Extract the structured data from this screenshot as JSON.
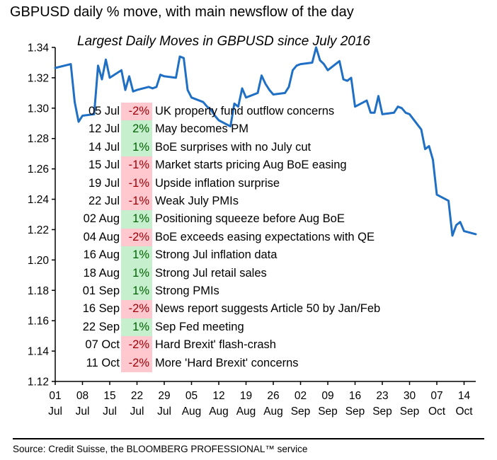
{
  "header": {
    "title": "GBPUSD daily % move, with main newsflow of the day"
  },
  "footer": {
    "source": "Source: Credit Suisse, the BLOOMBERG PROFESSIONAL™ service"
  },
  "chart_data": {
    "type": "line",
    "title": "Largest Daily Moves in GBPUSD since July 2016",
    "xlabel": "",
    "ylabel": "",
    "ylim": [
      1.12,
      1.34
    ],
    "yticks": [
      "1.12",
      "1.14",
      "1.16",
      "1.18",
      "1.20",
      "1.22",
      "1.24",
      "1.26",
      "1.28",
      "1.30",
      "1.32",
      "1.34"
    ],
    "xlim_days_from_01jul": [
      0,
      108
    ],
    "xticks": [
      {
        "day": 0,
        "top": "01",
        "bottom": "Jul"
      },
      {
        "day": 7,
        "top": "08",
        "bottom": "Jul"
      },
      {
        "day": 14,
        "top": "15",
        "bottom": "Jul"
      },
      {
        "day": 21,
        "top": "22",
        "bottom": "Jul"
      },
      {
        "day": 28,
        "top": "29",
        "bottom": "Jul"
      },
      {
        "day": 35,
        "top": "05",
        "bottom": "Aug"
      },
      {
        "day": 42,
        "top": "12",
        "bottom": "Aug"
      },
      {
        "day": 49,
        "top": "19",
        "bottom": "Aug"
      },
      {
        "day": 56,
        "top": "26",
        "bottom": "Aug"
      },
      {
        "day": 63,
        "top": "02",
        "bottom": "Sep"
      },
      {
        "day": 70,
        "top": "09",
        "bottom": "Sep"
      },
      {
        "day": 77,
        "top": "16",
        "bottom": "Sep"
      },
      {
        "day": 84,
        "top": "23",
        "bottom": "Sep"
      },
      {
        "day": 91,
        "top": "30",
        "bottom": "Sep"
      },
      {
        "day": 98,
        "top": "07",
        "bottom": "Oct"
      },
      {
        "day": 105,
        "top": "14",
        "bottom": "Oct"
      }
    ],
    "grid": false,
    "legend": "none",
    "series": [
      {
        "name": "GBPUSD",
        "color": "#1F6FC5",
        "points": [
          [
            0,
            1.3265
          ],
          [
            4,
            1.329
          ],
          [
            5,
            1.304
          ],
          [
            6,
            1.291
          ],
          [
            7,
            1.295
          ],
          [
            10,
            1.296
          ],
          [
            11,
            1.328
          ],
          [
            12,
            1.319
          ],
          [
            13,
            1.332
          ],
          [
            14,
            1.32
          ],
          [
            17,
            1.325
          ],
          [
            18,
            1.312
          ],
          [
            19,
            1.321
          ],
          [
            20,
            1.311
          ],
          [
            21,
            1.312
          ],
          [
            24,
            1.314
          ],
          [
            25,
            1.313
          ],
          [
            26,
            1.314
          ],
          [
            27,
            1.322
          ],
          [
            28,
            1.321
          ],
          [
            31,
            1.32
          ],
          [
            32,
            1.334
          ],
          [
            33,
            1.333
          ],
          [
            34,
            1.312
          ],
          [
            35,
            1.307
          ],
          [
            38,
            1.304
          ],
          [
            39,
            1.301
          ],
          [
            40,
            1.299
          ],
          [
            41,
            1.295
          ],
          [
            42,
            1.292
          ],
          [
            45,
            1.288
          ],
          [
            46,
            1.303
          ],
          [
            47,
            1.301
          ],
          [
            48,
            1.313
          ],
          [
            49,
            1.307
          ],
          [
            52,
            1.31
          ],
          [
            53,
            1.3215
          ],
          [
            54,
            1.316
          ],
          [
            55,
            1.312
          ],
          [
            56,
            1.309
          ],
          [
            59,
            1.31
          ],
          [
            60,
            1.314
          ],
          [
            61,
            1.325
          ],
          [
            62,
            1.328
          ],
          [
            63,
            1.329
          ],
          [
            66,
            1.33
          ],
          [
            67,
            1.34
          ],
          [
            68,
            1.3315
          ],
          [
            69,
            1.329
          ],
          [
            70,
            1.325
          ],
          [
            73,
            1.331
          ],
          [
            74,
            1.319
          ],
          [
            75,
            1.318
          ],
          [
            76,
            1.32
          ],
          [
            77,
            1.301
          ],
          [
            80,
            1.305
          ],
          [
            81,
            1.297
          ],
          [
            82,
            1.297
          ],
          [
            83,
            1.308
          ],
          [
            84,
            1.296
          ],
          [
            87,
            1.297
          ],
          [
            88,
            1.301
          ],
          [
            89,
            1.3
          ],
          [
            90,
            1.297
          ],
          [
            91,
            1.296
          ],
          [
            94,
            1.286
          ],
          [
            95,
            1.273
          ],
          [
            96,
            1.275
          ],
          [
            97,
            1.266
          ],
          [
            98,
            1.243
          ],
          [
            101,
            1.239
          ],
          [
            102,
            1.216
          ],
          [
            103,
            1.223
          ],
          [
            104,
            1.225
          ],
          [
            105,
            1.219
          ],
          [
            108,
            1.217
          ]
        ]
      }
    ],
    "table": {
      "columns": [
        "date",
        "move",
        "news"
      ],
      "rows": [
        {
          "date": "05 Jul",
          "move": "-2%",
          "sign": "neg",
          "news": "UK property fund outflow concerns"
        },
        {
          "date": "12 Jul",
          "move": "2%",
          "sign": "pos",
          "news": "May becomes PM"
        },
        {
          "date": "14 Jul",
          "move": "1%",
          "sign": "pos",
          "news": "BoE surprises with no July cut"
        },
        {
          "date": "15 Jul",
          "move": "-1%",
          "sign": "neg",
          "news": "Market starts pricing Aug BoE easing"
        },
        {
          "date": "19 Jul",
          "move": "-1%",
          "sign": "neg",
          "news": "Upside inflation surprise"
        },
        {
          "date": "22 Jul",
          "move": "-1%",
          "sign": "neg",
          "news": "Weak July PMIs"
        },
        {
          "date": "02 Aug",
          "move": "1%",
          "sign": "pos",
          "news": "Positioning squeeze before Aug BoE"
        },
        {
          "date": "04 Aug",
          "move": "-2%",
          "sign": "neg",
          "news": "BoE exceeds easing expectations with QE"
        },
        {
          "date": "16 Aug",
          "move": "1%",
          "sign": "pos",
          "news": "Strong Jul inflation data"
        },
        {
          "date": "18 Aug",
          "move": "1%",
          "sign": "pos",
          "news": "Strong Jul retail sales"
        },
        {
          "date": "01 Sep",
          "move": "1%",
          "sign": "pos",
          "news": "Strong PMIs"
        },
        {
          "date": "16 Sep",
          "move": "-2%",
          "sign": "neg",
          "news": "News report suggests Article 50 by Jan/Feb"
        },
        {
          "date": "22 Sep",
          "move": "1%",
          "sign": "pos",
          "news": "Sep Fed meeting"
        },
        {
          "date": "07 Oct",
          "move": "-2%",
          "sign": "neg",
          "news": "Hard Brexit' flash-crash"
        },
        {
          "date": "11 Oct",
          "move": "-2%",
          "sign": "neg",
          "news": "More 'Hard Brexit' concerns"
        }
      ]
    }
  }
}
